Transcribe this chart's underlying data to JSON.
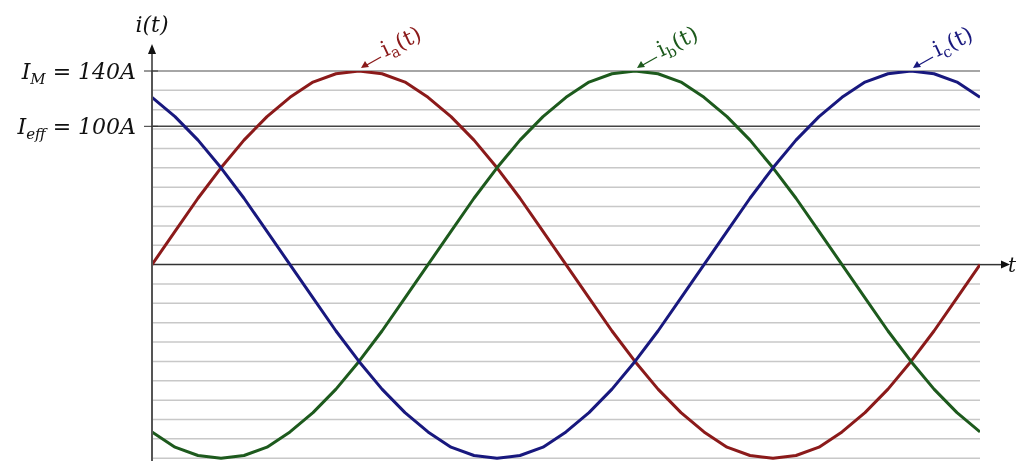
{
  "chart_data": {
    "type": "line",
    "ylabel": "i(t)",
    "xlabel": "t",
    "categories": [
      null,
      null,
      null,
      null,
      null,
      null,
      null,
      null,
      null,
      null,
      null,
      null,
      null,
      null,
      null,
      null,
      null,
      null,
      null,
      null,
      null,
      null,
      null,
      null,
      null,
      null,
      null,
      null,
      null,
      null,
      null,
      null,
      null,
      null,
      null,
      null,
      null
    ],
    "series": [
      {
        "name": "i$_{a}$(t)",
        "color": "#8b1a1a",
        "values": [
          0,
          24,
          48,
          70,
          90,
          107,
          121,
          132,
          138,
          140,
          138,
          132,
          121,
          107,
          90,
          70,
          48,
          24,
          0,
          -24,
          -48,
          -70,
          -90,
          -107,
          -121,
          -132,
          -138,
          -140,
          -138,
          -132,
          -121,
          -107,
          -90,
          -70,
          -48,
          -24,
          0
        ]
      },
      {
        "name": "i$_{b}$(t)",
        "color": "#1d5a1d",
        "values": [
          -121,
          -132,
          -138,
          -140,
          -138,
          -132,
          -121,
          -107,
          -90,
          -70,
          -48,
          -24,
          0,
          24,
          48,
          70,
          90,
          107,
          121,
          132,
          138,
          140,
          138,
          132,
          121,
          107,
          90,
          70,
          48,
          24,
          0,
          -24,
          -48,
          -70,
          -90,
          -107,
          -121
        ]
      },
      {
        "name": "i$_{c}$(t)",
        "color": "#18187e",
        "values": [
          121,
          107,
          90,
          70,
          48,
          24,
          0,
          -24,
          -48,
          -70,
          -90,
          -107,
          -121,
          -132,
          -138,
          -140,
          -138,
          -132,
          -121,
          -107,
          -90,
          -70,
          -48,
          -24,
          0,
          24,
          48,
          70,
          90,
          107,
          121,
          132,
          138,
          140,
          138,
          132,
          121
        ]
      }
    ],
    "ylim": [
      -142,
      140
    ],
    "yticks": [
      {
        "value": -140,
        "label": null
      },
      {
        "value": -126,
        "label": null
      },
      {
        "value": -112,
        "label": null
      },
      {
        "value": -98,
        "label": null
      },
      {
        "value": -84,
        "label": null
      },
      {
        "value": -70,
        "label": null
      },
      {
        "value": -56,
        "label": null
      },
      {
        "value": -42,
        "label": null
      },
      {
        "value": -28,
        "label": null
      },
      {
        "value": -14,
        "label": null
      },
      {
        "value": 14,
        "label": null
      },
      {
        "value": 28,
        "label": null
      },
      {
        "value": 42,
        "label": null
      },
      {
        "value": 56,
        "label": null
      },
      {
        "value": 70,
        "label": null
      },
      {
        "value": 84,
        "label": null
      },
      {
        "value": 98,
        "label": null
      },
      {
        "value": 100,
        "label": "I$_{eff}$ = 100A"
      },
      {
        "value": 112,
        "label": null
      },
      {
        "value": 126,
        "label": null
      },
      {
        "value": 140,
        "label": "I$_{M}$ = 140A"
      }
    ],
    "ref_lines": [
      {
        "axis": "y",
        "value": 100,
        "color": "#444444"
      },
      {
        "axis": "y",
        "value": 0,
        "color": "#333333"
      }
    ],
    "grid": "y",
    "tick_labels": "y",
    "marker": "none",
    "line_style": "solid"
  }
}
